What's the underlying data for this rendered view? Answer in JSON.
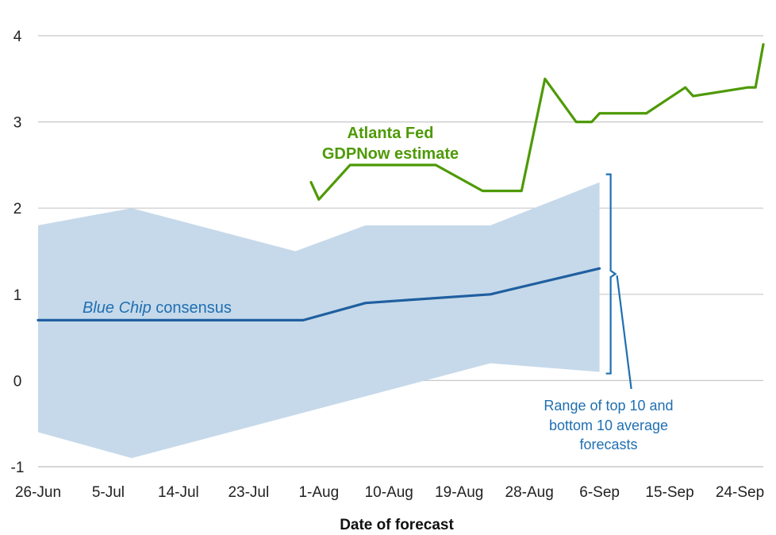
{
  "chart_data": {
    "type": "line",
    "xlabel": "Date of forecast",
    "x_ticks": [
      "26-Jun",
      "5-Jul",
      "14-Jul",
      "23-Jul",
      "1-Aug",
      "10-Aug",
      "19-Aug",
      "28-Aug",
      "6-Sep",
      "15-Sep",
      "24-Sep"
    ],
    "x_tick_values": [
      "2019-06-26",
      "2019-07-05",
      "2019-07-14",
      "2019-07-23",
      "2019-08-01",
      "2019-08-10",
      "2019-08-19",
      "2019-08-28",
      "2019-09-06",
      "2019-09-15",
      "2019-09-24"
    ],
    "xlim": [
      "2019-06-26",
      "2019-09-27"
    ],
    "ylim": [
      -1,
      4
    ],
    "y_ticks": [
      -1,
      0,
      1,
      2,
      3,
      4
    ],
    "grid": true,
    "series": [
      {
        "name": "Atlanta Fed GDPNow estimate",
        "color": "#4e9a06",
        "points": [
          [
            "2019-07-31",
            2.3
          ],
          [
            "2019-08-01",
            2.1
          ],
          [
            "2019-08-05",
            2.5
          ],
          [
            "2019-08-16",
            2.5
          ],
          [
            "2019-08-22",
            2.2
          ],
          [
            "2019-08-27",
            2.2
          ],
          [
            "2019-08-30",
            3.5
          ],
          [
            "2019-09-03",
            3.0
          ],
          [
            "2019-09-05",
            3.0
          ],
          [
            "2019-09-06",
            3.1
          ],
          [
            "2019-09-12",
            3.1
          ],
          [
            "2019-09-17",
            3.4
          ],
          [
            "2019-09-18",
            3.3
          ],
          [
            "2019-09-25",
            3.4
          ],
          [
            "2019-09-26",
            3.4
          ],
          [
            "2019-09-27",
            3.9
          ]
        ]
      },
      {
        "name": "Blue Chip consensus",
        "color": "#1f5fa0",
        "points": [
          [
            "2019-06-26",
            0.7
          ],
          [
            "2019-07-30",
            0.7
          ],
          [
            "2019-08-07",
            0.9
          ],
          [
            "2019-08-23",
            1.0
          ],
          [
            "2019-09-06",
            1.3
          ]
        ]
      }
    ],
    "range_band": {
      "name": "Range of top 10 and bottom 10 average forecasts",
      "color": "#c6d9ea",
      "upper": [
        [
          "2019-06-26",
          1.8
        ],
        [
          "2019-07-08",
          2.0
        ],
        [
          "2019-07-29",
          1.5
        ],
        [
          "2019-08-07",
          1.8
        ],
        [
          "2019-08-23",
          1.8
        ],
        [
          "2019-09-06",
          2.3
        ]
      ],
      "lower": [
        [
          "2019-06-26",
          -0.6
        ],
        [
          "2019-07-08",
          -0.9
        ],
        [
          "2019-08-23",
          0.2
        ],
        [
          "2019-09-06",
          0.1
        ]
      ]
    },
    "annotations": {
      "gdpnow_line1": "Atlanta Fed",
      "gdpnow_line2": "GDPNow estimate",
      "bluechip_italic": "Blue Chip",
      "bluechip_rest": " consensus",
      "range_line1": "Range of top 10 and",
      "range_line2": "bottom 10 average",
      "range_line3": "forecasts"
    }
  }
}
